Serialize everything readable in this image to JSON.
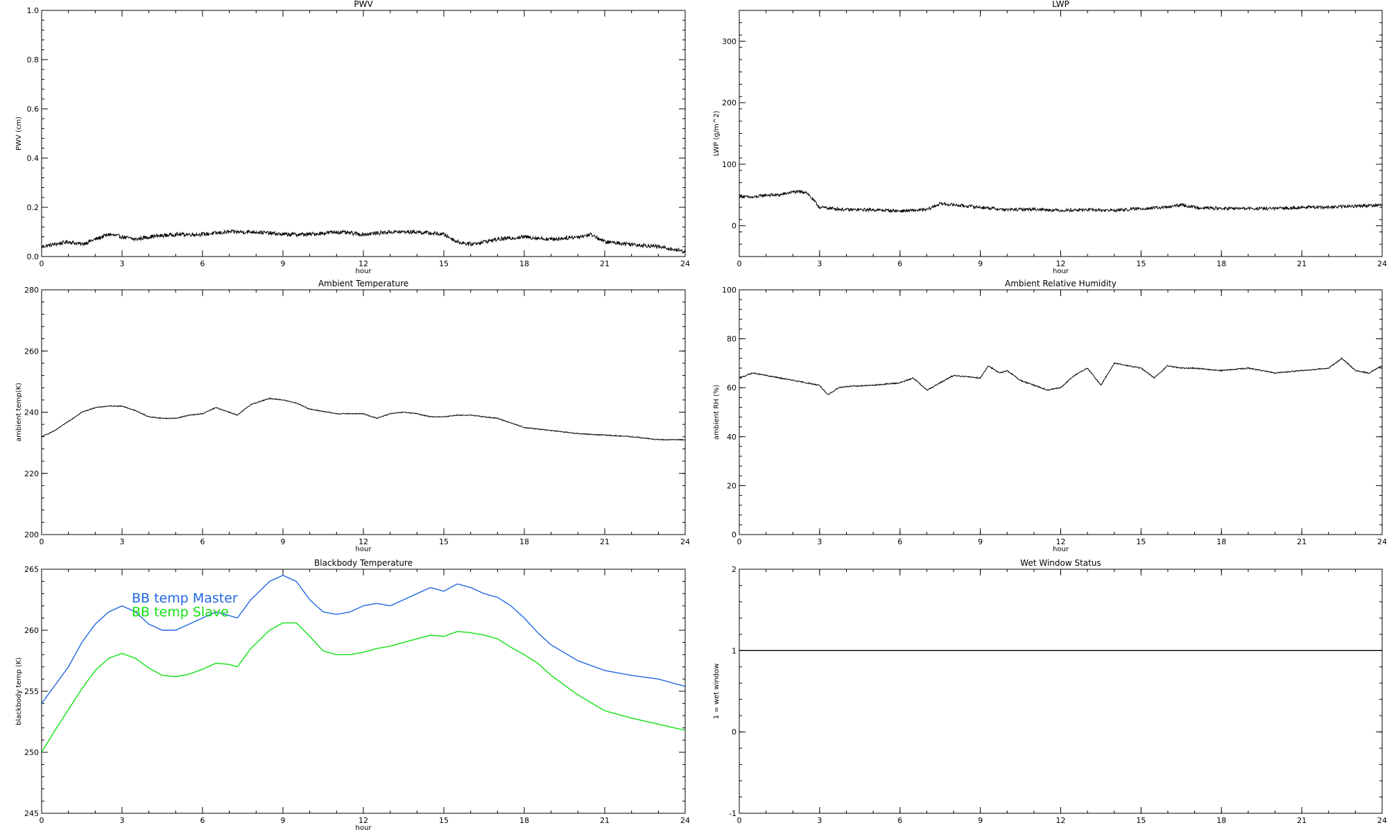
{
  "chart_data": [
    {
      "type": "line",
      "title": "PWV",
      "xlabel": "hour",
      "ylabel": "PWV (cm)",
      "xlim": [
        0,
        24
      ],
      "ylim": [
        0.0,
        1.0
      ],
      "xticks": [
        "0",
        "3",
        "6",
        "9",
        "12",
        "15",
        "18",
        "21",
        "24"
      ],
      "yticks": [
        {
          "value": 0.0,
          "label": "0.0"
        },
        {
          "value": 0.2,
          "label": "0.2"
        },
        {
          "value": 0.4,
          "label": "0.4"
        },
        {
          "value": 0.6,
          "label": "0.6"
        },
        {
          "value": 0.8,
          "label": "0.8"
        },
        {
          "value": 1.0,
          "label": "1.0"
        }
      ],
      "noise": 0.008,
      "series": [
        {
          "color": "#000000",
          "x": [
            0,
            1,
            1.5,
            2,
            2.5,
            3,
            3.5,
            4,
            5,
            6,
            7,
            8,
            9,
            10,
            11,
            12,
            13,
            14,
            15,
            15.5,
            16,
            16.5,
            17,
            18,
            19,
            20,
            20.5,
            21,
            22,
            23,
            24
          ],
          "y": [
            0.04,
            0.06,
            0.05,
            0.07,
            0.09,
            0.08,
            0.07,
            0.08,
            0.09,
            0.09,
            0.1,
            0.1,
            0.09,
            0.09,
            0.1,
            0.09,
            0.1,
            0.1,
            0.09,
            0.06,
            0.05,
            0.06,
            0.07,
            0.08,
            0.07,
            0.08,
            0.09,
            0.06,
            0.05,
            0.04,
            0.02
          ]
        }
      ]
    },
    {
      "type": "line",
      "title": "LWP",
      "xlabel": "hour",
      "ylabel": "LWP (g/m^2)",
      "xlim": [
        0,
        24
      ],
      "ylim": [
        -50,
        350
      ],
      "xticks": [
        "0",
        "3",
        "6",
        "9",
        "12",
        "15",
        "18",
        "21",
        "24"
      ],
      "yticks": [
        {
          "value": 0,
          "label": "0"
        },
        {
          "value": 100,
          "label": "100"
        },
        {
          "value": 200,
          "label": "200"
        },
        {
          "value": 300,
          "label": "300"
        }
      ],
      "noise": 2.5,
      "series": [
        {
          "color": "#000000",
          "x": [
            0,
            0.5,
            1,
            1.5,
            2,
            2.5,
            2.7,
            3,
            4,
            5,
            6,
            7,
            7.5,
            8,
            9,
            10,
            11,
            12,
            13,
            14,
            15,
            16,
            16.5,
            17,
            18,
            19,
            20,
            21,
            22,
            23,
            24
          ],
          "y": [
            48,
            46,
            50,
            50,
            55,
            55,
            45,
            30,
            26,
            26,
            24,
            26,
            36,
            34,
            30,
            26,
            27,
            25,
            26,
            25,
            28,
            30,
            34,
            30,
            28,
            28,
            28,
            30,
            30,
            32,
            34
          ]
        }
      ]
    },
    {
      "type": "line",
      "title": "Ambient Temperature",
      "xlabel": "hour",
      "ylabel": "ambient temp(K)",
      "xlim": [
        0,
        24
      ],
      "ylim": [
        200,
        280
      ],
      "xticks": [
        "0",
        "3",
        "6",
        "9",
        "12",
        "15",
        "18",
        "21",
        "24"
      ],
      "yticks": [
        {
          "value": 200,
          "label": "200"
        },
        {
          "value": 220,
          "label": "220"
        },
        {
          "value": 240,
          "label": "240"
        },
        {
          "value": 260,
          "label": "260"
        },
        {
          "value": 280,
          "label": "280"
        }
      ],
      "noise": 0.15,
      "series": [
        {
          "color": "#000000",
          "x": [
            0,
            0.5,
            1,
            1.5,
            2,
            2.5,
            3,
            3.5,
            4,
            4.5,
            5,
            5.5,
            6,
            6.5,
            7,
            7.3,
            7.8,
            8.5,
            9,
            9.5,
            10,
            11,
            12,
            12.5,
            13,
            13.5,
            14,
            14.5,
            15,
            15.5,
            16,
            17,
            17.5,
            18,
            19,
            20,
            21,
            22,
            23,
            24
          ],
          "y": [
            232,
            234,
            237,
            240,
            241.5,
            242,
            242,
            240.5,
            238.5,
            238,
            238,
            239,
            239.5,
            241.5,
            240,
            239,
            242.5,
            244.5,
            244,
            243,
            241,
            239.5,
            239.5,
            238,
            239.5,
            240,
            239.5,
            238.5,
            238.5,
            239,
            239,
            238,
            236.5,
            235,
            234,
            233,
            232.5,
            232,
            231,
            231
          ]
        }
      ]
    },
    {
      "type": "line",
      "title": "Ambient Relative Humidity",
      "xlabel": "hour",
      "ylabel": "ambient RH (%)",
      "xlim": [
        0,
        24
      ],
      "ylim": [
        0,
        100
      ],
      "xticks": [
        "0",
        "3",
        "6",
        "9",
        "12",
        "15",
        "18",
        "21",
        "24"
      ],
      "yticks": [
        {
          "value": 0,
          "label": "0"
        },
        {
          "value": 20,
          "label": "20"
        },
        {
          "value": 40,
          "label": "40"
        },
        {
          "value": 60,
          "label": "60"
        },
        {
          "value": 80,
          "label": "80"
        },
        {
          "value": 100,
          "label": "100"
        }
      ],
      "noise": 0.25,
      "series": [
        {
          "color": "#000000",
          "x": [
            0,
            0.5,
            1,
            2,
            2.5,
            3,
            3.3,
            3.7,
            4,
            5,
            6,
            6.5,
            7,
            7.5,
            8,
            9,
            9.3,
            9.7,
            10,
            10.5,
            11,
            11.5,
            12,
            12.5,
            13,
            13.5,
            14,
            14.5,
            15,
            15.5,
            16,
            16.5,
            17,
            18,
            19,
            19.5,
            20,
            21,
            22,
            22.5,
            23,
            23.5,
            24
          ],
          "y": [
            64,
            66,
            65,
            63,
            62,
            61,
            57,
            60,
            60.5,
            61,
            62,
            64,
            59,
            62,
            65,
            64,
            69,
            66,
            67,
            63,
            61,
            59,
            60,
            65,
            68,
            61,
            70,
            69,
            68,
            64,
            69,
            68,
            68,
            67,
            68,
            67,
            66,
            67,
            68,
            72,
            67,
            66,
            69
          ]
        }
      ]
    },
    {
      "type": "line",
      "title": "Blackbody Temperature",
      "xlabel": "hour",
      "ylabel": "blackbody temp (K)",
      "xlim": [
        0,
        24
      ],
      "ylim": [
        245,
        265
      ],
      "xticks": [
        "0",
        "3",
        "6",
        "9",
        "12",
        "15",
        "18",
        "21",
        "24"
      ],
      "yticks": [
        {
          "value": 245,
          "label": "245"
        },
        {
          "value": 250,
          "label": "250"
        },
        {
          "value": 255,
          "label": "255"
        },
        {
          "value": 260,
          "label": "260"
        },
        {
          "value": 265,
          "label": "265"
        }
      ],
      "noise": 0.0,
      "legend": {
        "position": "top-left"
      },
      "series": [
        {
          "name": "BB temp Master",
          "color": "#1f66e0",
          "x": [
            0,
            0.5,
            1,
            1.5,
            2,
            2.5,
            3,
            3.5,
            4,
            4.5,
            5,
            5.5,
            6,
            6.5,
            7,
            7.3,
            7.8,
            8.5,
            9,
            9.5,
            10,
            10.5,
            11,
            11.5,
            12,
            12.5,
            13,
            13.5,
            14,
            14.5,
            15,
            15.5,
            16,
            16.5,
            17,
            17.5,
            18,
            18.5,
            19,
            20,
            21,
            22,
            23,
            24
          ],
          "y": [
            254,
            255.5,
            257,
            259,
            260.5,
            261.5,
            262,
            261.5,
            260.5,
            260,
            260,
            260.5,
            261,
            261.5,
            261.2,
            261,
            262.5,
            264,
            264.5,
            264,
            262.5,
            261.5,
            261.3,
            261.5,
            262,
            262.2,
            262,
            262.5,
            263,
            263.5,
            263.2,
            263.8,
            263.5,
            263,
            262.7,
            262,
            261,
            259.8,
            258.8,
            257.5,
            256.7,
            256.3,
            256,
            255.4
          ]
        },
        {
          "name": "BB temp Slave",
          "color": "#11e011",
          "x": [
            0,
            0.5,
            1,
            1.5,
            2,
            2.5,
            3,
            3.5,
            4,
            4.5,
            5,
            5.5,
            6,
            6.5,
            7,
            7.3,
            7.8,
            8.5,
            9,
            9.5,
            10,
            10.5,
            11,
            11.5,
            12,
            12.5,
            13,
            13.5,
            14,
            14.5,
            15,
            15.5,
            16,
            16.5,
            17,
            17.5,
            18,
            18.5,
            19,
            20,
            21,
            22,
            23,
            24
          ],
          "y": [
            250,
            251.8,
            253.5,
            255.2,
            256.7,
            257.7,
            258.1,
            257.7,
            256.9,
            256.3,
            256.2,
            256.4,
            256.8,
            257.3,
            257.2,
            257,
            258.5,
            260,
            260.6,
            260.6,
            259.5,
            258.3,
            258,
            258,
            258.2,
            258.5,
            258.7,
            259,
            259.3,
            259.6,
            259.5,
            259.9,
            259.8,
            259.6,
            259.3,
            258.6,
            258,
            257.3,
            256.3,
            254.7,
            253.4,
            252.8,
            252.3,
            251.8
          ]
        }
      ]
    },
    {
      "type": "line",
      "title": "Wet Window Status",
      "xlabel": "",
      "ylabel": "1 = wet window",
      "xlim": [
        0,
        24
      ],
      "ylim": [
        -1,
        2
      ],
      "xticks": [
        "0",
        "3",
        "6",
        "9",
        "12",
        "15",
        "18",
        "21",
        "24"
      ],
      "yticks": [
        {
          "value": -1,
          "label": "-1"
        },
        {
          "value": 0,
          "label": "0"
        },
        {
          "value": 1,
          "label": "1"
        },
        {
          "value": 2,
          "label": "2"
        }
      ],
      "noise": 0.0,
      "series": [
        {
          "color": "#000000",
          "x": [
            0,
            24
          ],
          "y": [
            1,
            1
          ]
        }
      ]
    }
  ]
}
